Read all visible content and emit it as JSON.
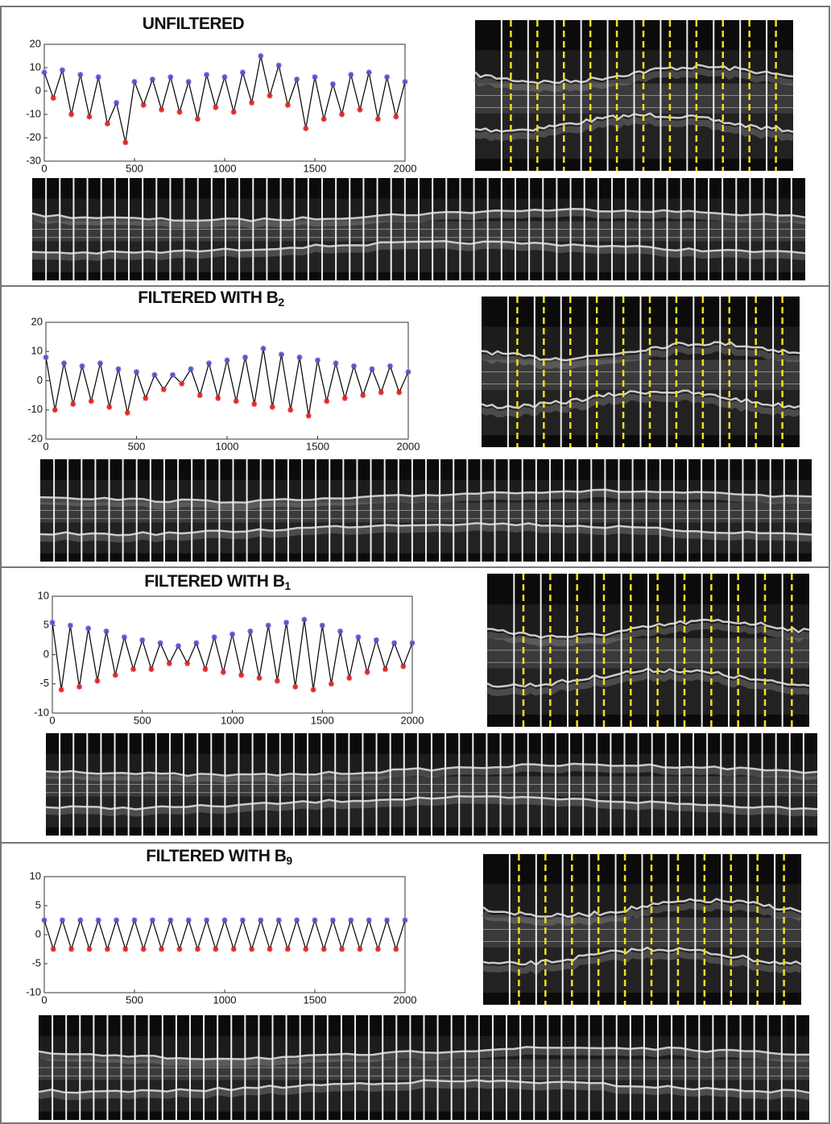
{
  "chart_data": [
    {
      "type": "line",
      "title": "UNFILTERED",
      "series": [
        {
          "color": "#000000",
          "marker_colors": [
            "#5555cc",
            "#e02828"
          ],
          "x": [
            0,
            50,
            100,
            150,
            200,
            250,
            300,
            350,
            400,
            450,
            500,
            550,
            600,
            650,
            700,
            750,
            800,
            850,
            900,
            950,
            1000,
            1050,
            1100,
            1150,
            1200,
            1250,
            1300,
            1350,
            1400,
            1450,
            1500,
            1550,
            1600,
            1650,
            1700,
            1750,
            1800,
            1850,
            1900,
            1950,
            2000
          ],
          "values": [
            8,
            -3,
            9,
            -10,
            7,
            -11,
            6,
            -14,
            -5,
            -22,
            4,
            -6,
            5,
            -8,
            6,
            -9,
            4,
            -12,
            7,
            -7,
            6,
            -9,
            8,
            -5,
            15,
            -2,
            11,
            -6,
            5,
            -16,
            6,
            -12,
            3,
            -10,
            7,
            -8,
            8,
            -12,
            6,
            -11,
            4
          ]
        }
      ],
      "xlim": [
        0,
        2000
      ],
      "xticks": [
        0,
        500,
        1000,
        1500,
        2000
      ],
      "ylim": [
        -30,
        20
      ],
      "yticks": [
        -30,
        -20,
        -10,
        0,
        10,
        20
      ]
    },
    {
      "type": "line",
      "title": "FILTERED WITH B",
      "title_subscript": "2",
      "series": [
        {
          "color": "#000000",
          "marker_colors": [
            "#5555cc",
            "#e02828"
          ],
          "x": [
            0,
            50,
            100,
            150,
            200,
            250,
            300,
            350,
            400,
            450,
            500,
            550,
            600,
            650,
            700,
            750,
            800,
            850,
            900,
            950,
            1000,
            1050,
            1100,
            1150,
            1200,
            1250,
            1300,
            1350,
            1400,
            1450,
            1500,
            1550,
            1600,
            1650,
            1700,
            1750,
            1800,
            1850,
            1900,
            1950,
            2000
          ],
          "values": [
            8,
            -10,
            6,
            -8,
            5,
            -7,
            6,
            -9,
            4,
            -11,
            3,
            -6,
            2,
            -3,
            2,
            -1,
            4,
            -5,
            6,
            -6,
            7,
            -7,
            8,
            -8,
            11,
            -9,
            9,
            -10,
            8,
            -12,
            7,
            -7,
            6,
            -6,
            5,
            -5,
            4,
            -4,
            5,
            -4,
            3
          ]
        }
      ],
      "xlim": [
        0,
        2000
      ],
      "xticks": [
        0,
        500,
        1000,
        1500,
        2000
      ],
      "ylim": [
        -20,
        20
      ],
      "yticks": [
        -20,
        -10,
        0,
        10,
        20
      ]
    },
    {
      "type": "line",
      "title": "FILTERED WITH B",
      "title_subscript": "1",
      "series": [
        {
          "color": "#000000",
          "marker_colors": [
            "#5555cc",
            "#e02828"
          ],
          "x": [
            0,
            50,
            100,
            150,
            200,
            250,
            300,
            350,
            400,
            450,
            500,
            550,
            600,
            650,
            700,
            750,
            800,
            850,
            900,
            950,
            1000,
            1050,
            1100,
            1150,
            1200,
            1250,
            1300,
            1350,
            1400,
            1450,
            1500,
            1550,
            1600,
            1650,
            1700,
            1750,
            1800,
            1850,
            1900,
            1950,
            2000
          ],
          "values": [
            5.5,
            -6,
            5,
            -5.5,
            4.5,
            -4.5,
            4,
            -3.5,
            3,
            -2.5,
            2.5,
            -2.5,
            2,
            -1.5,
            1.5,
            -1.5,
            2,
            -2.5,
            3,
            -3,
            3.5,
            -3.5,
            4,
            -4,
            5,
            -4.5,
            5.5,
            -5.5,
            6,
            -6,
            5,
            -5,
            4,
            -4,
            3,
            -3,
            2.5,
            -2.5,
            2,
            -2,
            2
          ]
        }
      ],
      "xlim": [
        0,
        2000
      ],
      "xticks": [
        0,
        500,
        1000,
        1500,
        2000
      ],
      "ylim": [
        -10,
        10
      ],
      "yticks": [
        -10,
        -5,
        0,
        5,
        10
      ]
    },
    {
      "type": "line",
      "title": "FILTERED WITH B",
      "title_subscript": "9",
      "series": [
        {
          "color": "#000000",
          "marker_colors": [
            "#5555cc",
            "#e02828"
          ],
          "x": [
            0,
            50,
            100,
            150,
            200,
            250,
            300,
            350,
            400,
            450,
            500,
            550,
            600,
            650,
            700,
            750,
            800,
            850,
            900,
            950,
            1000,
            1050,
            1100,
            1150,
            1200,
            1250,
            1300,
            1350,
            1400,
            1450,
            1500,
            1550,
            1600,
            1650,
            1700,
            1750,
            1800,
            1850,
            1900,
            1950,
            2000
          ],
          "values": [
            2.5,
            -2.5,
            2.5,
            -2.5,
            2.5,
            -2.5,
            2.5,
            -2.5,
            2.5,
            -2.5,
            2.5,
            -2.5,
            2.5,
            -2.5,
            2.5,
            -2.5,
            2.5,
            -2.5,
            2.5,
            -2.5,
            2.5,
            -2.5,
            2.5,
            -2.5,
            2.5,
            -2.5,
            2.5,
            -2.5,
            2.5,
            -2.5,
            2.5,
            -2.5,
            2.5,
            -2.5,
            2.5,
            -2.5,
            2.5,
            -2.5,
            2.5,
            -2.5,
            2.5
          ]
        }
      ],
      "xlim": [
        0,
        2000
      ],
      "xticks": [
        0,
        500,
        1000,
        1500,
        2000
      ],
      "ylim": [
        -10,
        10
      ],
      "yticks": [
        -10,
        -5,
        0,
        5,
        10
      ]
    }
  ]
}
